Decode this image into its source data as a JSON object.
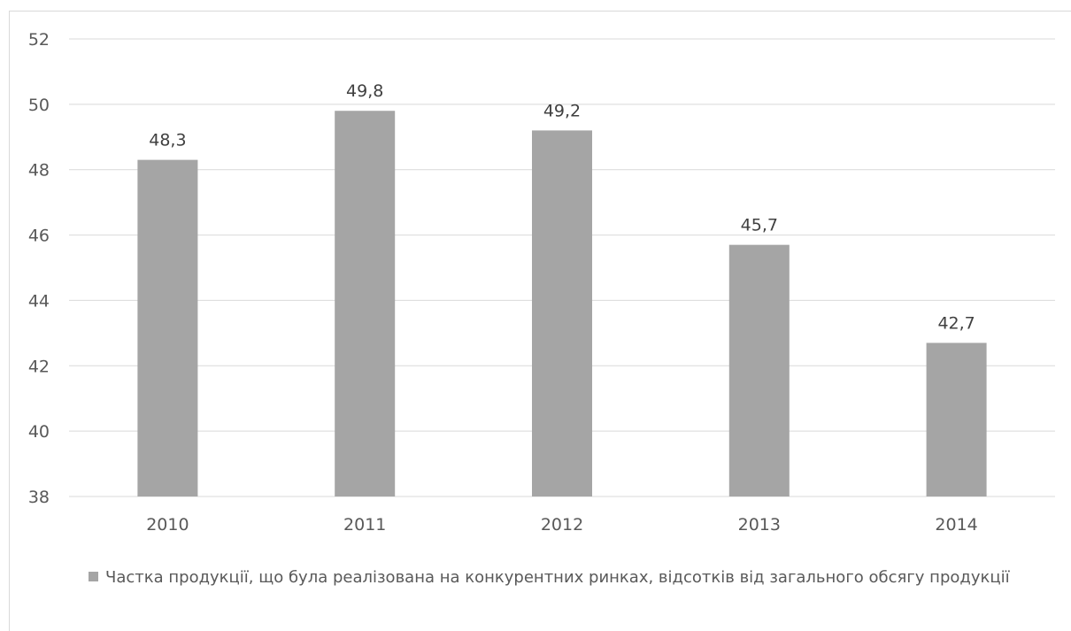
{
  "chart_data": {
    "type": "bar",
    "categories": [
      "2010",
      "2011",
      "2012",
      "2013",
      "2014"
    ],
    "series": [
      {
        "name": "Частка продукції, що була реалізована на конкурентних ринках, відсотків від загального обсягу продукції",
        "values": [
          48.3,
          49.8,
          49.2,
          45.7,
          42.7
        ],
        "data_labels": [
          "48,3",
          "49,8",
          "49,2",
          "45,7",
          "42,7"
        ]
      }
    ],
    "ylim": [
      38,
      52
    ],
    "yticks": [
      38,
      40,
      42,
      44,
      46,
      48,
      50,
      52
    ],
    "grid": true,
    "legend_position": "bottom",
    "bar_color": "#a5a5a5",
    "grid_color": "#d9d9d9"
  }
}
